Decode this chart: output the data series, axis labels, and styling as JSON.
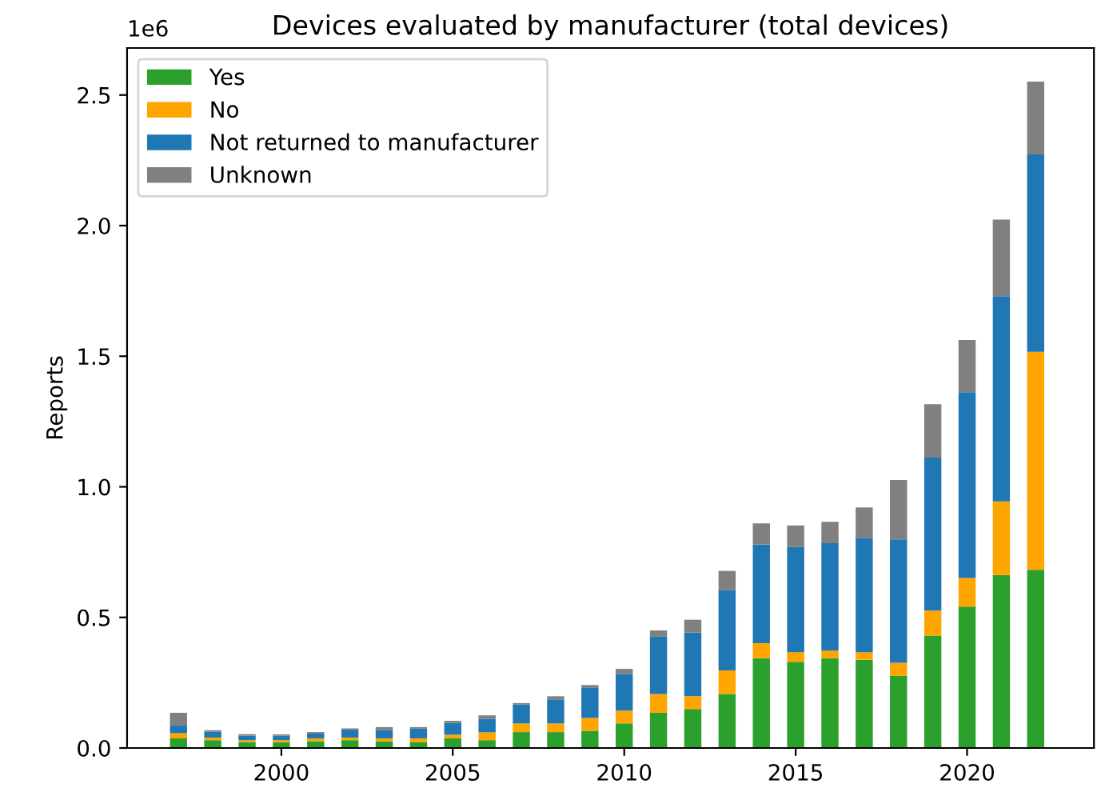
{
  "chart_data": {
    "type": "bar",
    "title": "Devices evaluated by manufacturer (total devices)",
    "ylabel": "Reports",
    "stacked": true,
    "legend": "top left",
    "grid": false,
    "annotations": [
      "1e6"
    ],
    "x": [
      1997,
      1998,
      1999,
      2000,
      2001,
      2002,
      2003,
      2004,
      2005,
      2006,
      2007,
      2008,
      2009,
      2010,
      2011,
      2012,
      2013,
      2014,
      2015,
      2016,
      2017,
      2018,
      2019,
      2020,
      2021,
      2022
    ],
    "xlim": [
      1995.5,
      2023.7
    ],
    "xticks": [
      2000,
      2005,
      2010,
      2015,
      2020
    ],
    "ylim": [
      0,
      2.68
    ],
    "yticks": [
      {
        "value": 0,
        "label": "0.0"
      },
      0.5,
      {
        "value": 1,
        "label": "1.0"
      },
      1.5,
      {
        "value": 2,
        "label": "2.0"
      },
      2.5
    ],
    "series": [
      {
        "name": "Yes",
        "color": "#2ca02c",
        "values": [
          0.037,
          0.03,
          0.023,
          0.022,
          0.026,
          0.03,
          0.026,
          0.023,
          0.037,
          0.03,
          0.061,
          0.061,
          0.066,
          0.094,
          0.135,
          0.149,
          0.207,
          0.344,
          0.33,
          0.344,
          0.338,
          0.276,
          0.43,
          0.541,
          0.662,
          0.682
        ]
      },
      {
        "name": "No",
        "color": "#ffa500",
        "values": [
          0.02,
          0.01,
          0.007,
          0.008,
          0.011,
          0.01,
          0.011,
          0.014,
          0.014,
          0.03,
          0.033,
          0.033,
          0.049,
          0.049,
          0.072,
          0.049,
          0.09,
          0.057,
          0.037,
          0.029,
          0.029,
          0.05,
          0.096,
          0.11,
          0.282,
          0.835
        ]
      },
      {
        "name": "Not returned to manufacturer",
        "color": "#1f77b4",
        "values": [
          0.031,
          0.023,
          0.017,
          0.017,
          0.018,
          0.03,
          0.031,
          0.037,
          0.045,
          0.052,
          0.072,
          0.092,
          0.117,
          0.14,
          0.219,
          0.244,
          0.307,
          0.378,
          0.403,
          0.411,
          0.438,
          0.473,
          0.586,
          0.711,
          0.786,
          0.756
        ]
      },
      {
        "name": "Unknown",
        "color": "#808080",
        "values": [
          0.047,
          0.005,
          0.006,
          0.005,
          0.006,
          0.005,
          0.012,
          0.006,
          0.008,
          0.013,
          0.006,
          0.012,
          0.009,
          0.02,
          0.024,
          0.049,
          0.074,
          0.081,
          0.082,
          0.082,
          0.116,
          0.227,
          0.204,
          0.2,
          0.293,
          0.278
        ]
      }
    ]
  }
}
